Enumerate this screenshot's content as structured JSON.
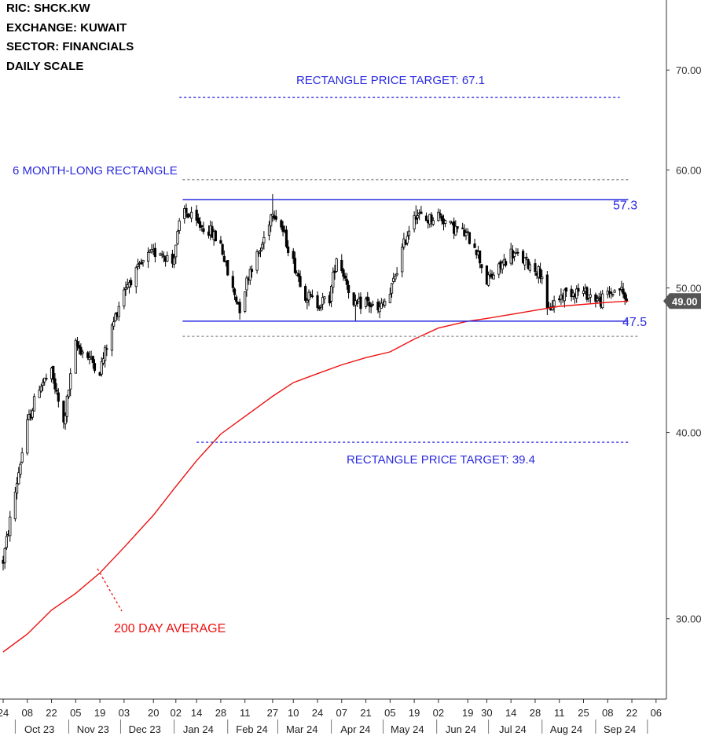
{
  "header": {
    "ric": "RIC:  SHCK.KW",
    "exchange": "EXCHANGE:  KUWAIT",
    "sector": "SECTOR:  FINANCIALS",
    "scale": "DAILY SCALE"
  },
  "chart_data": {
    "type": "candlestick",
    "yscale": "log",
    "ylim": [
      26.5,
      78
    ],
    "y_ticks": [
      30,
      40,
      50,
      60,
      70
    ],
    "y_tick_labels": [
      "30.00",
      "40.00",
      "50.00",
      "60.00",
      "70.00"
    ],
    "last_price": 49.0,
    "last_price_label": "49.00",
    "x_range": [
      "2023-09-24",
      "2024-10-12"
    ],
    "x_ticks": [
      {
        "date": "2023-09-24",
        "label": "24"
      },
      {
        "date": "2023-10-08",
        "label": "08"
      },
      {
        "date": "2023-10-22",
        "label": "22"
      },
      {
        "date": "2023-11-05",
        "label": "05"
      },
      {
        "date": "2023-11-19",
        "label": "19"
      },
      {
        "date": "2023-12-03",
        "label": "03"
      },
      {
        "date": "2023-12-20",
        "label": "20"
      },
      {
        "date": "2024-01-02",
        "label": "02"
      },
      {
        "date": "2024-01-14",
        "label": "14"
      },
      {
        "date": "2024-01-28",
        "label": "28"
      },
      {
        "date": "2024-02-11",
        "label": "11"
      },
      {
        "date": "2024-02-27",
        "label": "27"
      },
      {
        "date": "2024-03-10",
        "label": "10"
      },
      {
        "date": "2024-03-24",
        "label": "24"
      },
      {
        "date": "2024-04-07",
        "label": "07"
      },
      {
        "date": "2024-04-21",
        "label": "21"
      },
      {
        "date": "2024-05-05",
        "label": "05"
      },
      {
        "date": "2024-05-19",
        "label": "19"
      },
      {
        "date": "2024-06-02",
        "label": "02"
      },
      {
        "date": "2024-06-19",
        "label": "19"
      },
      {
        "date": "2024-06-30",
        "label": "30"
      },
      {
        "date": "2024-07-14",
        "label": "14"
      },
      {
        "date": "2024-07-28",
        "label": "28"
      },
      {
        "date": "2024-08-11",
        "label": "11"
      },
      {
        "date": "2024-08-25",
        "label": "25"
      },
      {
        "date": "2024-09-08",
        "label": "08"
      },
      {
        "date": "2024-09-22",
        "label": "22"
      },
      {
        "date": "2024-10-06",
        "label": "06"
      }
    ],
    "x_months": [
      {
        "date": "2023-10-15",
        "label": "Oct 23"
      },
      {
        "date": "2023-11-15",
        "label": "Nov 23"
      },
      {
        "date": "2023-12-15",
        "label": "Dec 23"
      },
      {
        "date": "2024-01-15",
        "label": "Jan 24"
      },
      {
        "date": "2024-02-15",
        "label": "Feb 24"
      },
      {
        "date": "2024-03-15",
        "label": "Mar 24"
      },
      {
        "date": "2024-04-15",
        "label": "Apr 24"
      },
      {
        "date": "2024-05-15",
        "label": "May 24"
      },
      {
        "date": "2024-06-15",
        "label": "Jun 24"
      },
      {
        "date": "2024-07-15",
        "label": "Jul 24"
      },
      {
        "date": "2024-08-15",
        "label": "Aug 24"
      },
      {
        "date": "2024-09-15",
        "label": "Sep 24"
      }
    ],
    "month_bounds": [
      "2023-10-01",
      "2023-11-01",
      "2023-12-01",
      "2024-01-01",
      "2024-02-01",
      "2024-03-01",
      "2024-04-01",
      "2024-05-01",
      "2024-06-01",
      "2024-07-01",
      "2024-08-01",
      "2024-09-01",
      "2024-10-01"
    ],
    "price_path": [
      [
        "2023-09-24",
        32.8
      ],
      [
        "2023-10-01",
        36.5
      ],
      [
        "2023-10-08",
        40.5
      ],
      [
        "2023-10-15",
        43.0
      ],
      [
        "2023-10-22",
        43.8
      ],
      [
        "2023-10-29",
        40.5
      ],
      [
        "2023-11-05",
        45.8
      ],
      [
        "2023-11-12",
        45.0
      ],
      [
        "2023-11-19",
        44.0
      ],
      [
        "2023-11-26",
        47.0
      ],
      [
        "2023-12-03",
        50.0
      ],
      [
        "2023-12-10",
        51.2
      ],
      [
        "2023-12-17",
        52.5
      ],
      [
        "2023-12-24",
        53.0
      ],
      [
        "2023-12-31",
        52.0
      ],
      [
        "2024-01-06",
        56.5
      ],
      [
        "2024-01-14",
        55.2
      ],
      [
        "2024-01-21",
        54.7
      ],
      [
        "2024-01-28",
        53.5
      ],
      [
        "2024-02-02",
        50.5
      ],
      [
        "2024-02-08",
        48.5
      ],
      [
        "2024-02-14",
        51.5
      ],
      [
        "2024-02-20",
        53.0
      ],
      [
        "2024-02-27",
        56.5
      ],
      [
        "2024-03-03",
        55.0
      ],
      [
        "2024-03-10",
        52.0
      ],
      [
        "2024-03-17",
        49.5
      ],
      [
        "2024-03-24",
        48.8
      ],
      [
        "2024-03-31",
        49.2
      ],
      [
        "2024-04-04",
        52.5
      ],
      [
        "2024-04-10",
        50.5
      ],
      [
        "2024-04-14",
        48.5
      ],
      [
        "2024-04-21",
        49.0
      ],
      [
        "2024-04-28",
        48.2
      ],
      [
        "2024-05-05",
        49.5
      ],
      [
        "2024-05-12",
        53.0
      ],
      [
        "2024-05-19",
        56.2
      ],
      [
        "2024-05-26",
        55.5
      ],
      [
        "2024-06-02",
        56.0
      ],
      [
        "2024-06-09",
        55.0
      ],
      [
        "2024-06-16",
        54.5
      ],
      [
        "2024-06-23",
        53.5
      ],
      [
        "2024-06-30",
        50.5
      ],
      [
        "2024-07-07",
        51.5
      ],
      [
        "2024-07-14",
        52.8
      ],
      [
        "2024-07-21",
        52.2
      ],
      [
        "2024-07-28",
        51.5
      ],
      [
        "2024-08-02",
        51.0
      ],
      [
        "2024-08-04",
        48.0
      ],
      [
        "2024-08-07",
        48.8
      ],
      [
        "2024-08-14",
        49.6
      ],
      [
        "2024-08-21",
        49.8
      ],
      [
        "2024-08-28",
        49.5
      ],
      [
        "2024-09-04",
        49.0
      ],
      [
        "2024-09-08",
        49.5
      ],
      [
        "2024-09-15",
        50.0
      ],
      [
        "2024-09-19",
        49.0
      ]
    ],
    "spikes": [
      {
        "date": "2024-08-02",
        "low": 45.3
      },
      {
        "date": "2024-02-09",
        "low": 47.7
      },
      {
        "date": "2024-04-15",
        "low": 47.5
      },
      {
        "date": "2024-01-05",
        "high": 57.6
      },
      {
        "date": "2024-02-27",
        "high": 57.8
      },
      {
        "date": "2024-05-20",
        "high": 56.8
      }
    ],
    "ma200": {
      "name": "200 DAY AVERAGE",
      "points": [
        [
          "2023-09-24",
          28.5
        ],
        [
          "2023-10-08",
          29.3
        ],
        [
          "2023-10-22",
          30.4
        ],
        [
          "2023-11-05",
          31.2
        ],
        [
          "2023-11-19",
          32.2
        ],
        [
          "2023-12-03",
          33.5
        ],
        [
          "2023-12-20",
          35.2
        ],
        [
          "2024-01-02",
          36.8
        ],
        [
          "2024-01-14",
          38.3
        ],
        [
          "2024-01-28",
          39.9
        ],
        [
          "2024-02-11",
          41.0
        ],
        [
          "2024-02-27",
          42.3
        ],
        [
          "2024-03-10",
          43.2
        ],
        [
          "2024-03-24",
          43.8
        ],
        [
          "2024-04-07",
          44.4
        ],
        [
          "2024-04-21",
          44.9
        ],
        [
          "2024-05-05",
          45.3
        ],
        [
          "2024-05-19",
          46.2
        ],
        [
          "2024-06-02",
          47.0
        ],
        [
          "2024-06-19",
          47.5
        ],
        [
          "2024-06-30",
          47.7
        ],
        [
          "2024-07-14",
          48.0
        ],
        [
          "2024-07-28",
          48.3
        ],
        [
          "2024-08-11",
          48.6
        ],
        [
          "2024-08-25",
          48.75
        ],
        [
          "2024-09-08",
          48.9
        ],
        [
          "2024-09-20",
          49.0
        ]
      ]
    },
    "rectangle": {
      "upper": 57.3,
      "lower": 47.5,
      "upper_label": "57.3",
      "lower_label": "47.5",
      "start": "2024-01-05",
      "end": "2024-09-19",
      "dashed_upper": 59.1,
      "dashed_lower": 46.4,
      "title": "6 MONTH-LONG RECTANGLE"
    },
    "targets": [
      {
        "value": 67.1,
        "label": "RECTANGLE PRICE TARGET: 67.1",
        "start": "2024-01-04",
        "end": "2024-09-15"
      },
      {
        "value": 39.4,
        "label": "RECTANGLE PRICE TARGET: 39.4",
        "start": "2024-01-14",
        "end": "2024-09-20"
      }
    ],
    "ma_annotation": "200 DAY AVERAGE"
  },
  "colors": {
    "bar": "#000000",
    "ma": "#ee1111",
    "rect": "#2a2ae0",
    "annot_blue": "#2a2ae0",
    "annot_red": "#ee1111",
    "dash_gray": "#999999",
    "last_price_bg": "#555555"
  }
}
